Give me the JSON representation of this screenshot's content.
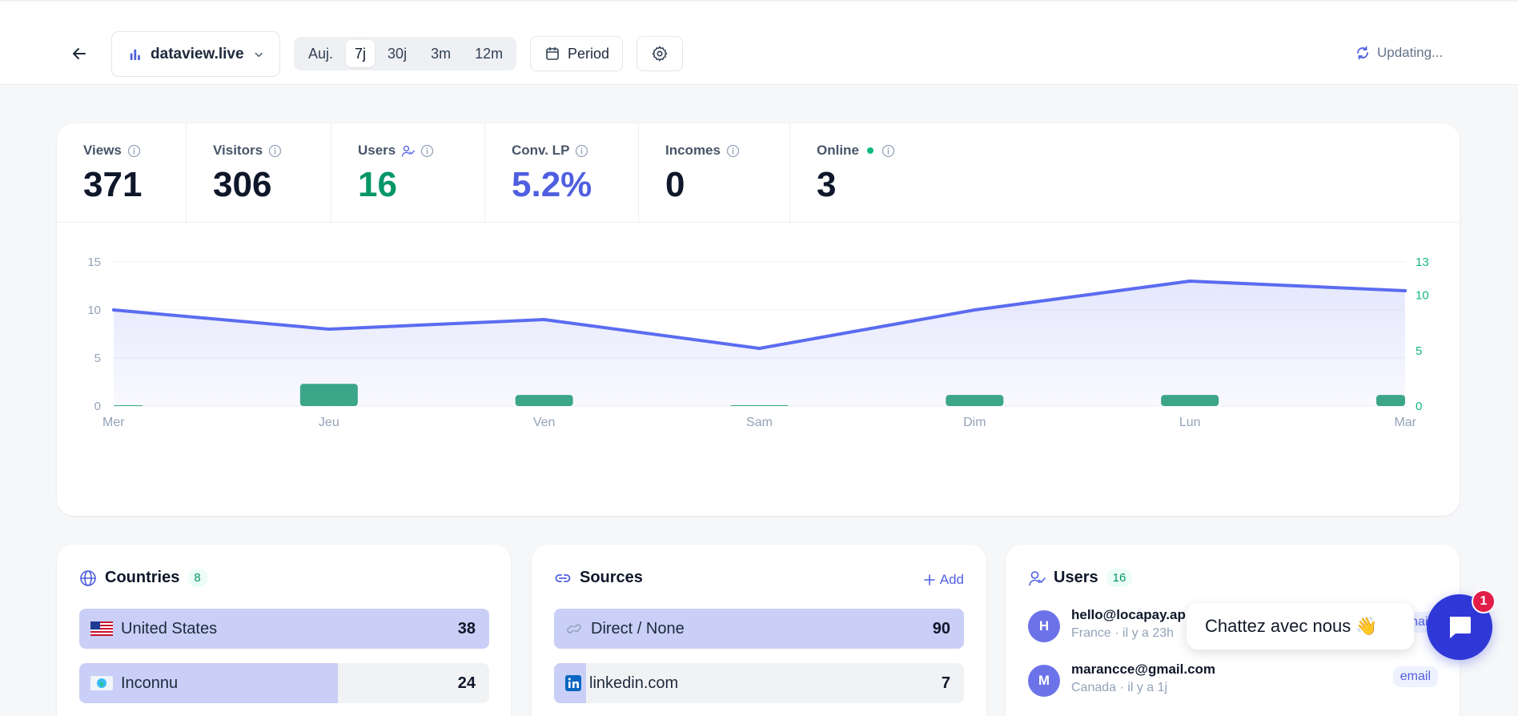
{
  "header": {
    "site_name": "dataview.live",
    "ranges": [
      {
        "label": "Auj.",
        "active": false
      },
      {
        "label": "7j",
        "active": true
      },
      {
        "label": "30j",
        "active": false
      },
      {
        "label": "3m",
        "active": false
      },
      {
        "label": "12m",
        "active": false
      }
    ],
    "period_label": "Period",
    "status": "Updating..."
  },
  "stats": [
    {
      "label": "Views",
      "value": "371",
      "color": "#0f172a"
    },
    {
      "label": "Visitors",
      "value": "306",
      "color": "#0f172a"
    },
    {
      "label": "Users",
      "value": "16",
      "color": "#059669"
    },
    {
      "label": "Conv. LP",
      "value": "5.2%",
      "color": "#4f5fe0"
    },
    {
      "label": "Incomes",
      "value": "0",
      "color": "#0f172a"
    },
    {
      "label": "Online",
      "value": "3",
      "color": "#0f172a"
    }
  ],
  "chart_data": {
    "type": "line",
    "categories": [
      "Mer",
      "Jeu",
      "Ven",
      "Sam",
      "Dim",
      "Lun",
      "Mar"
    ],
    "series": [
      {
        "type": "area",
        "values": [
          10,
          8,
          9,
          6,
          10,
          13,
          12
        ],
        "color": "#5b6cf0",
        "axis": "left"
      },
      {
        "type": "bar",
        "values": [
          0,
          2,
          1,
          0,
          1,
          1,
          1
        ],
        "color": "#3aa982",
        "axis": "right"
      }
    ],
    "ylim_left": [
      0,
      15
    ],
    "yticks_left": [
      "0",
      "5",
      "10",
      "15"
    ],
    "ylim_right": [
      0,
      13
    ],
    "yticks_right": [
      "0",
      "5",
      "10",
      "13"
    ],
    "grid": true
  },
  "countries": {
    "title": "Countries",
    "count": "8",
    "items": [
      {
        "name": "United States",
        "value": "38",
        "share": 1.0
      },
      {
        "name": "Inconnu",
        "value": "24",
        "share": 0.63
      }
    ]
  },
  "sources": {
    "title": "Sources",
    "add_label": "Add",
    "items": [
      {
        "name": "Direct / None",
        "value": "90",
        "share": 1.0
      },
      {
        "name": "linkedin.com",
        "value": "7",
        "share": 0.078
      }
    ]
  },
  "users": {
    "title": "Users",
    "count": "16",
    "items": [
      {
        "initial": "H",
        "email": "hello@locapay.ap",
        "meta": "France · il y a 23h",
        "tag": "email"
      },
      {
        "initial": "M",
        "email": "marancce@gmail.com",
        "meta": "Canada · il y a 1j",
        "tag": "email"
      }
    ]
  },
  "chat": {
    "message": "Chattez avec nous 👋",
    "unread": "1"
  }
}
